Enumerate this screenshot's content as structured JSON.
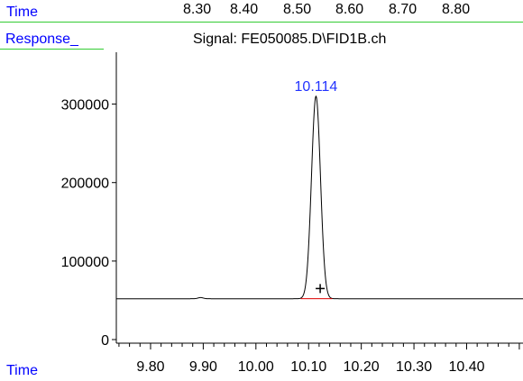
{
  "header": {
    "time_label": "Time",
    "time_ticks": [
      "8.30",
      "8.40",
      "8.50",
      "8.60",
      "8.70",
      "8.80"
    ],
    "response_label": "Response_",
    "signal_title": "Signal: FE050085.D\\FID1B.ch"
  },
  "footer": {
    "time_label": "Time"
  },
  "colors": {
    "label_blue": "#0000ff",
    "peak_label": "#2233ff",
    "separator_green": "#33cc33",
    "trace": "#000000",
    "baseline": "#dd0000"
  },
  "chart_data": {
    "type": "line",
    "title": "Signal: FE050085.D\\FID1B.ch",
    "xlabel": "Time",
    "ylabel": "Response_",
    "xlim": [
      9.735,
      10.507
    ],
    "ylim": [
      0,
      350000
    ],
    "x_ticks": [
      "9.80",
      "9.90",
      "10.00",
      "10.10",
      "10.20",
      "10.30",
      "10.40"
    ],
    "y_ticks": [
      "0",
      "100000",
      "200000",
      "300000"
    ],
    "y_tick_values": [
      0,
      100000,
      200000,
      300000
    ],
    "baseline": 52000,
    "series": [
      {
        "peaks": [
          {
            "retention_time": 10.114,
            "height": 310000,
            "width_sigma": 0.0085,
            "label": "10.114"
          },
          {
            "retention_time": 9.895,
            "height": 53500,
            "width_sigma": 0.005
          }
        ]
      }
    ],
    "integration_baseline": {
      "from": 10.085,
      "to": 10.145,
      "value": 52000
    },
    "marker": {
      "type": "plus",
      "x": 10.122,
      "y": 65000
    }
  }
}
